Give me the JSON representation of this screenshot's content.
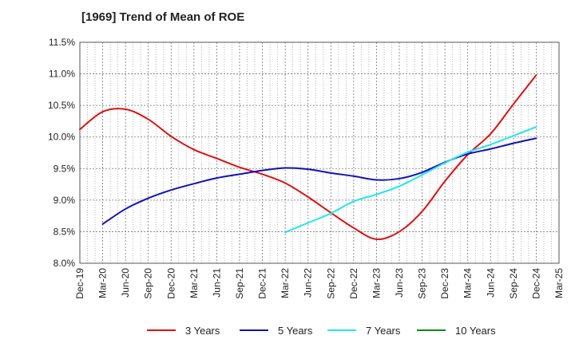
{
  "chart_data": {
    "type": "line",
    "title": "[1969]  Trend of Mean of ROE",
    "xlabel": "",
    "ylabel": "",
    "categories": [
      "Dec-19",
      "Mar-20",
      "Jun-20",
      "Sep-20",
      "Dec-20",
      "Mar-21",
      "Jun-21",
      "Sep-21",
      "Dec-21",
      "Mar-22",
      "Jun-22",
      "Sep-22",
      "Dec-22",
      "Mar-23",
      "Jun-23",
      "Sep-23",
      "Dec-23",
      "Mar-24",
      "Jun-24",
      "Sep-24",
      "Dec-24",
      "Mar-25"
    ],
    "y_ticks": [
      "8.0%",
      "8.5%",
      "9.0%",
      "9.5%",
      "10.0%",
      "10.5%",
      "11.0%",
      "11.5%"
    ],
    "ylim": [
      8.0,
      11.5
    ],
    "grid": true,
    "legend_position": "bottom",
    "series": [
      {
        "name": "3 Years",
        "color": "#dd1111",
        "values": [
          10.12,
          10.4,
          10.44,
          10.28,
          10.01,
          9.8,
          9.66,
          9.52,
          9.41,
          9.27,
          9.05,
          8.8,
          8.56,
          8.38,
          8.5,
          8.82,
          9.3,
          9.72,
          10.05,
          10.52,
          10.98,
          null
        ]
      },
      {
        "name": "5 Years",
        "color": "#1111bb",
        "values": [
          null,
          8.62,
          8.86,
          9.03,
          9.16,
          9.26,
          9.35,
          9.41,
          9.47,
          9.51,
          9.49,
          9.43,
          9.38,
          9.32,
          9.34,
          9.44,
          9.6,
          9.73,
          9.81,
          9.9,
          9.98,
          null
        ]
      },
      {
        "name": "7 Years",
        "color": "#22e6e6",
        "values": [
          null,
          null,
          null,
          null,
          null,
          null,
          null,
          null,
          null,
          8.49,
          8.64,
          8.79,
          8.98,
          9.09,
          9.22,
          9.4,
          9.59,
          9.76,
          9.88,
          10.02,
          10.16,
          null
        ]
      },
      {
        "name": "10 Years",
        "color": "#118811",
        "values": [
          null,
          null,
          null,
          null,
          null,
          null,
          null,
          null,
          null,
          null,
          null,
          null,
          null,
          null,
          null,
          null,
          null,
          null,
          null,
          null,
          null,
          null
        ]
      }
    ]
  }
}
